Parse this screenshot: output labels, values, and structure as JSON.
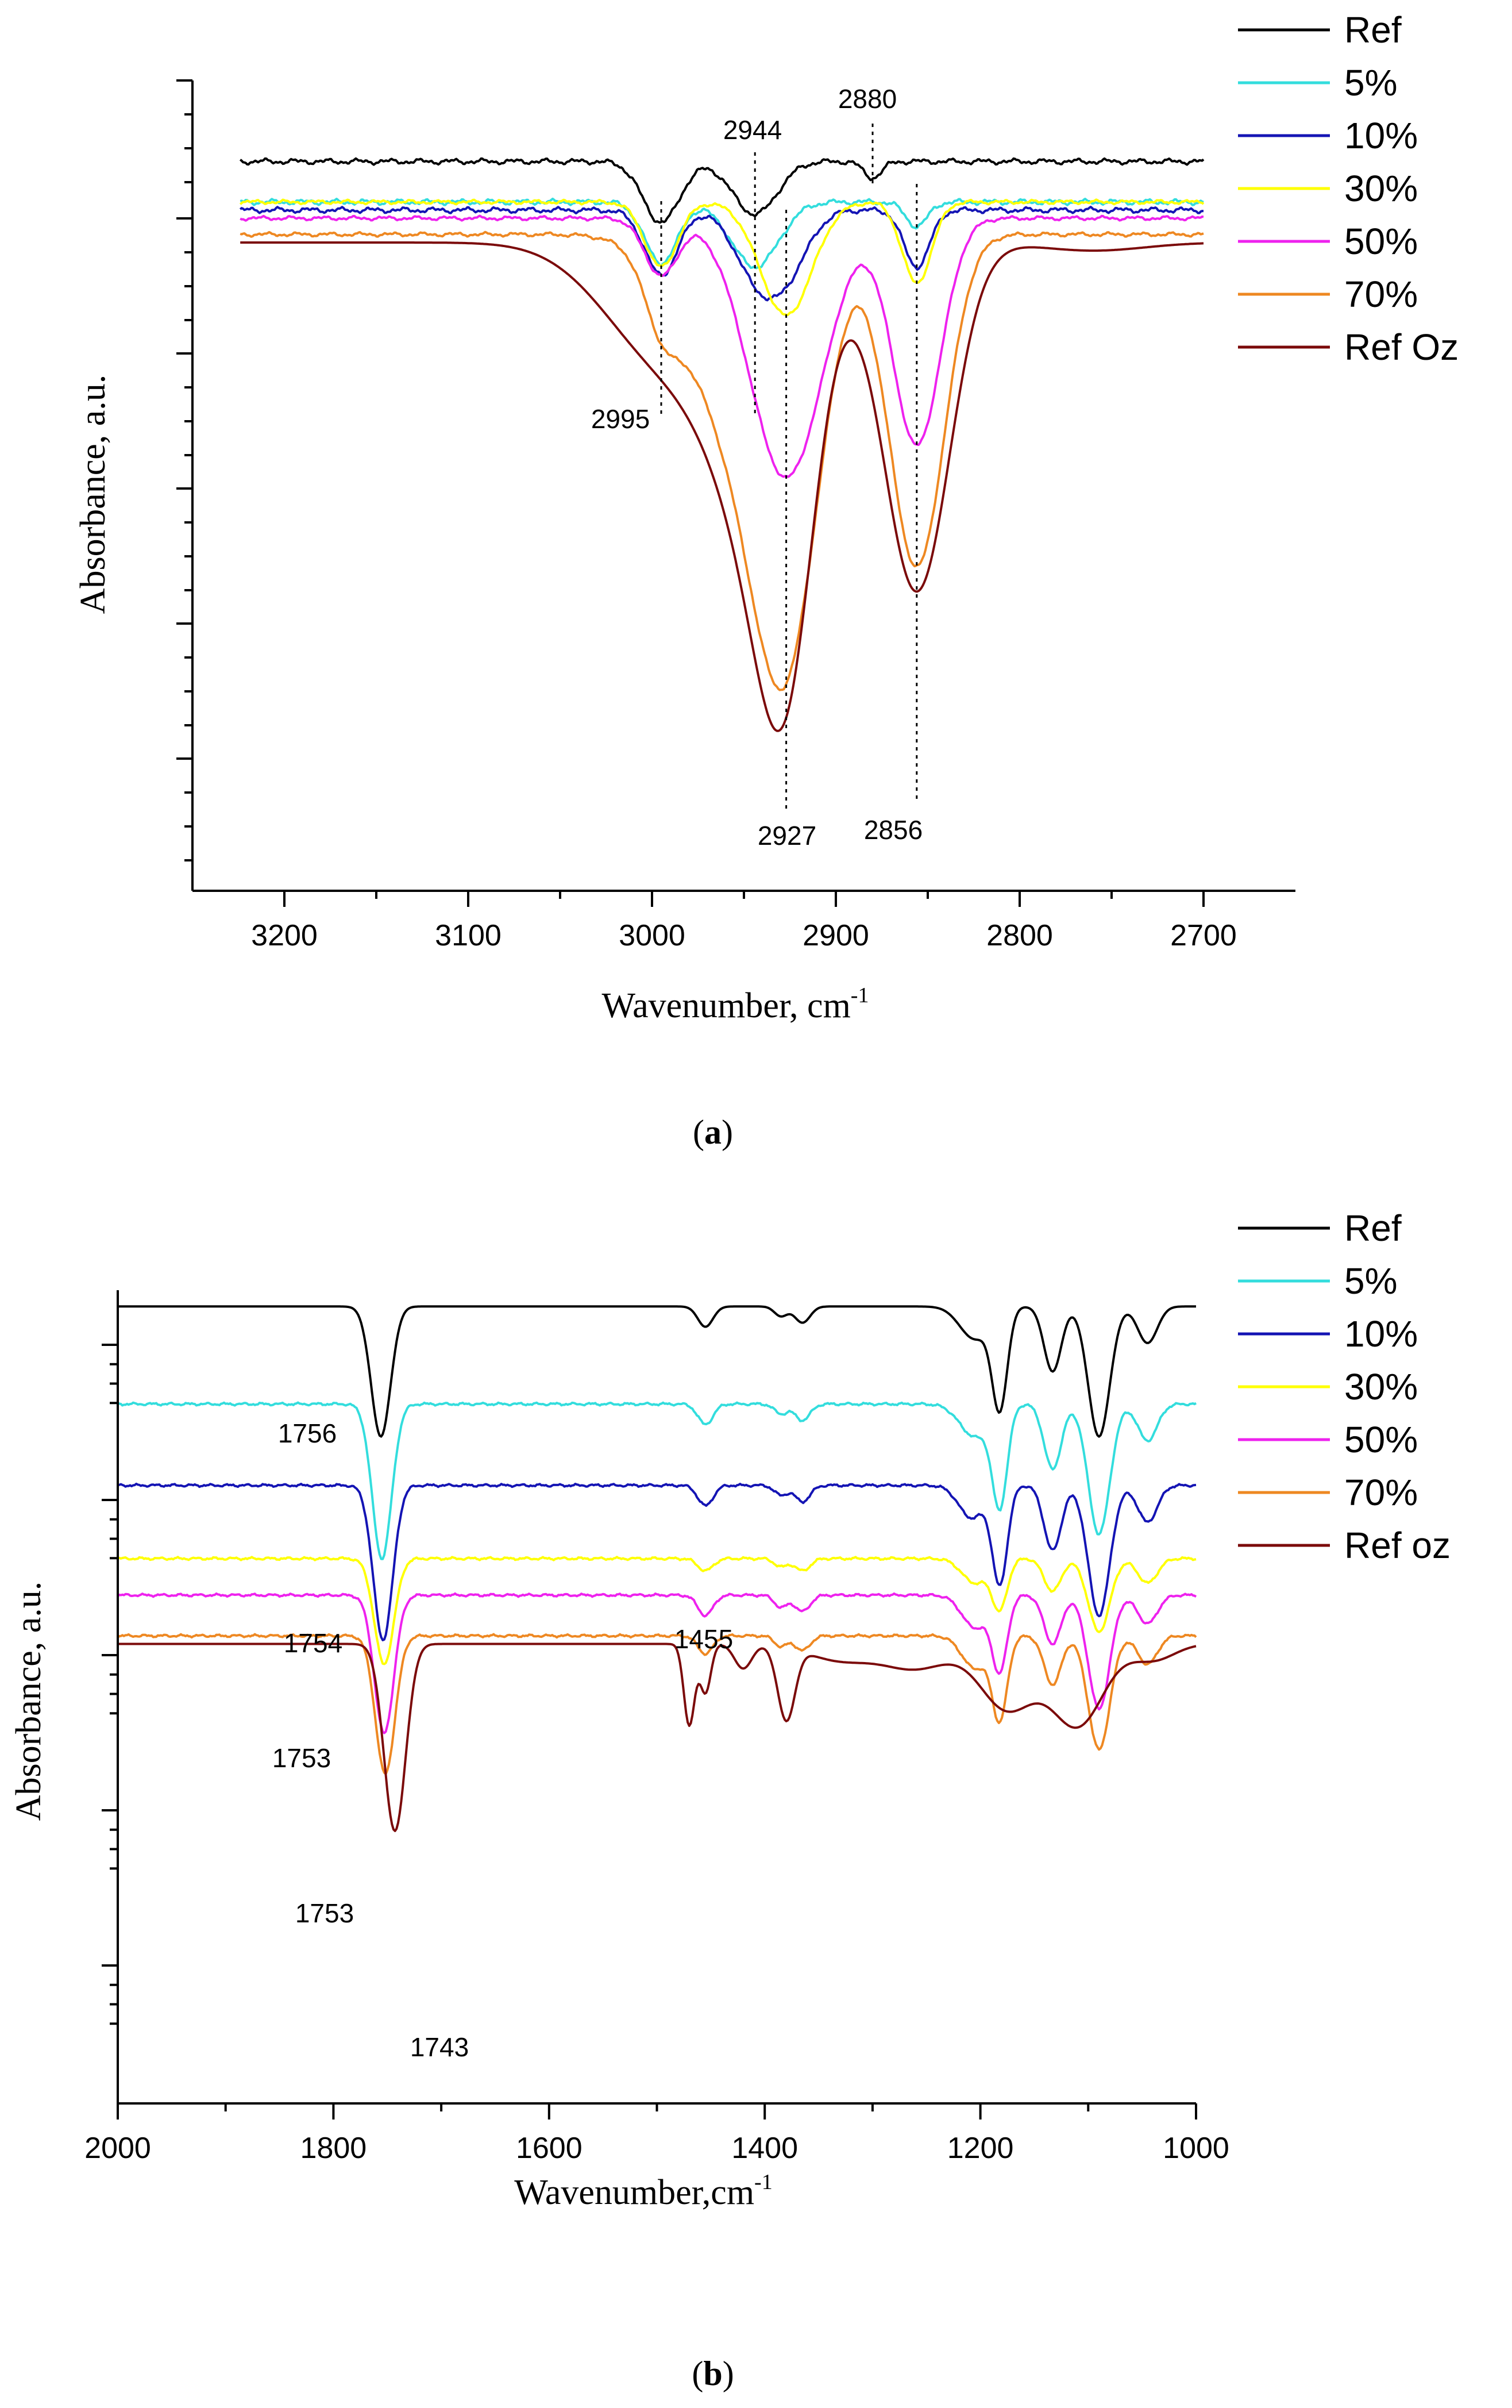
{
  "chart_data": [
    {
      "panel": "a",
      "type": "line",
      "caption_letter": "a",
      "xlabel": "Wavenumber, cm",
      "xlabel_sup": "-1",
      "ylabel": "Absorbance, a.u.",
      "xlim": [
        3250,
        2650
      ],
      "xticks": [
        3200,
        3100,
        3000,
        2900,
        2800,
        2700
      ],
      "ylim": [
        0,
        1
      ],
      "series": [
        {
          "name": "Ref",
          "color": "#000000",
          "base": 0.9,
          "peaks": [
            [
              2995,
              0.075,
              10
            ],
            [
              2944,
              0.065,
              12
            ],
            [
              2880,
              0.02,
              5
            ]
          ],
          "noise": 0.004
        },
        {
          "name": "5%",
          "color": "#33dddd",
          "base": 0.85,
          "peaks": [
            [
              2995,
              0.075,
              9
            ],
            [
              2944,
              0.08,
              13
            ],
            [
              2856,
              0.03,
              6
            ]
          ],
          "noise": 0.004
        },
        {
          "name": "10%",
          "color": "#1414b4",
          "base": 0.84,
          "peaks": [
            [
              2995,
              0.08,
              9
            ],
            [
              2944,
              0.07,
              12
            ],
            [
              2927,
              0.07,
              12
            ],
            [
              2856,
              0.07,
              7
            ]
          ],
          "noise": 0.004
        },
        {
          "name": "30%",
          "color": "#ffff00",
          "base": 0.85,
          "peaks": [
            [
              2995,
              0.08,
              9
            ],
            [
              2927,
              0.14,
              14
            ],
            [
              2856,
              0.1,
              8
            ]
          ],
          "noise": 0.003
        },
        {
          "name": "50%",
          "color": "#ee22ee",
          "base": 0.83,
          "peaks": [
            [
              2995,
              0.07,
              9
            ],
            [
              2927,
              0.32,
              20
            ],
            [
              2856,
              0.28,
              13
            ]
          ],
          "noise": 0.003
        },
        {
          "name": "70%",
          "color": "#ee8822",
          "base": 0.81,
          "peaks": [
            [
              2995,
              0.06,
              9
            ],
            [
              2960,
              0.2,
              25
            ],
            [
              2927,
              0.47,
              18
            ],
            [
              2856,
              0.41,
              15
            ]
          ],
          "noise": 0.003
        },
        {
          "name": "Ref Oz",
          "color": "#7b0a0a",
          "base": 0.8,
          "peaks": [
            [
              2990,
              0.15,
              34
            ],
            [
              2940,
              0.3,
              24
            ],
            [
              2927,
              0.3,
              15
            ],
            [
              2856,
              0.43,
              18
            ],
            [
              2760,
              0.01,
              28
            ]
          ],
          "noise": 0.0
        }
      ],
      "annotations": [
        {
          "label": "2995",
          "x": 2995
        },
        {
          "label": "2944",
          "x": 2944
        },
        {
          "label": "2880",
          "x": 2880
        },
        {
          "label": "2927",
          "x": 2927
        },
        {
          "label": "2856",
          "x": 2856
        }
      ]
    },
    {
      "panel": "b",
      "type": "line",
      "caption_letter": "b",
      "xlabel": "Wavenumber,cm",
      "xlabel_sup": "-1",
      "ylabel": "Absorbance, a.u.",
      "xlim": [
        2000,
        1000
      ],
      "xticks": [
        2000,
        1800,
        1600,
        1400,
        1200,
        1000
      ],
      "ylim": [
        0,
        1
      ],
      "series": [
        {
          "name": "Ref",
          "color": "#000000",
          "base": 0.98,
          "peaks": [
            [
              1756,
              0.16,
              9
            ],
            [
              1455,
              0.025,
              7
            ],
            [
              1385,
              0.012,
              6
            ],
            [
              1365,
              0.02,
              7
            ],
            [
              1205,
              0.04,
              14
            ],
            [
              1182,
              0.12,
              7
            ],
            [
              1133,
              0.08,
              8
            ],
            [
              1090,
              0.16,
              10
            ],
            [
              1045,
              0.045,
              9
            ]
          ],
          "noise": 0.0
        },
        {
          "name": "5%",
          "color": "#33dddd",
          "base": 0.86,
          "peaks": [
            [
              1755,
              0.19,
              9
            ],
            [
              1455,
              0.025,
              7
            ],
            [
              1385,
              0.012,
              6
            ],
            [
              1365,
              0.02,
              7
            ],
            [
              1205,
              0.04,
              14
            ],
            [
              1182,
              0.12,
              7
            ],
            [
              1133,
              0.08,
              8
            ],
            [
              1090,
              0.16,
              10
            ],
            [
              1045,
              0.045,
              9
            ]
          ],
          "noise": 0.002
        },
        {
          "name": "10%",
          "color": "#1414b4",
          "base": 0.76,
          "peaks": [
            [
              1754,
              0.19,
              9
            ],
            [
              1455,
              0.025,
              7
            ],
            [
              1385,
              0.012,
              6
            ],
            [
              1365,
              0.02,
              7
            ],
            [
              1208,
              0.04,
              12
            ],
            [
              1182,
              0.12,
              7
            ],
            [
              1133,
              0.08,
              8
            ],
            [
              1090,
              0.16,
              10
            ],
            [
              1045,
              0.045,
              9
            ]
          ],
          "noise": 0.002
        },
        {
          "name": "30%",
          "color": "#ffff00",
          "base": 0.67,
          "peaks": [
            [
              1753,
              0.13,
              9
            ],
            [
              1455,
              0.015,
              7
            ],
            [
              1385,
              0.01,
              6
            ],
            [
              1365,
              0.015,
              7
            ],
            [
              1205,
              0.03,
              12
            ],
            [
              1182,
              0.06,
              7
            ],
            [
              1133,
              0.04,
              8
            ],
            [
              1090,
              0.09,
              10
            ],
            [
              1045,
              0.03,
              9
            ]
          ],
          "noise": 0.002
        },
        {
          "name": "50%",
          "color": "#ee22ee",
          "base": 0.625,
          "peaks": [
            [
              1753,
              0.17,
              9
            ],
            [
              1455,
              0.025,
              7
            ],
            [
              1385,
              0.015,
              6
            ],
            [
              1365,
              0.02,
              7
            ],
            [
              1205,
              0.04,
              12
            ],
            [
              1182,
              0.09,
              7
            ],
            [
              1133,
              0.06,
              8
            ],
            [
              1090,
              0.14,
              10
            ],
            [
              1045,
              0.035,
              9
            ]
          ],
          "noise": 0.002
        },
        {
          "name": "70%",
          "color": "#ee8822",
          "base": 0.575,
          "peaks": [
            [
              1752,
              0.17,
              9
            ],
            [
              1455,
              0.022,
              7
            ],
            [
              1385,
              0.013,
              6
            ],
            [
              1365,
              0.018,
              7
            ],
            [
              1205,
              0.04,
              12
            ],
            [
              1182,
              0.1,
              7
            ],
            [
              1133,
              0.06,
              8
            ],
            [
              1090,
              0.14,
              10
            ],
            [
              1045,
              0.035,
              9
            ]
          ],
          "noise": 0.002
        },
        {
          "name": "Ref oz",
          "color": "#7b0a0a",
          "base": 0.565,
          "peaks": [
            [
              1743,
              0.23,
              10
            ],
            [
              1470,
              0.1,
              5
            ],
            [
              1455,
              0.06,
              5
            ],
            [
              1420,
              0.03,
              8
            ],
            [
              1380,
              0.09,
              8
            ],
            [
              1330,
              0.02,
              30
            ],
            [
              1260,
              0.03,
              30
            ],
            [
              1175,
              0.08,
              25
            ],
            [
              1110,
              0.1,
              24
            ],
            [
              1040,
              0.02,
              20
            ]
          ],
          "noise": 0.0
        }
      ],
      "annotations": [
        {
          "label": "1756",
          "x": 1756
        },
        {
          "label": "1754",
          "x": 1754
        },
        {
          "label": "1455",
          "x": 1455
        },
        {
          "label": "1753",
          "x": 1753
        },
        {
          "label": "1753",
          "x": 1753
        },
        {
          "label": "1743",
          "x": 1743
        }
      ]
    }
  ]
}
